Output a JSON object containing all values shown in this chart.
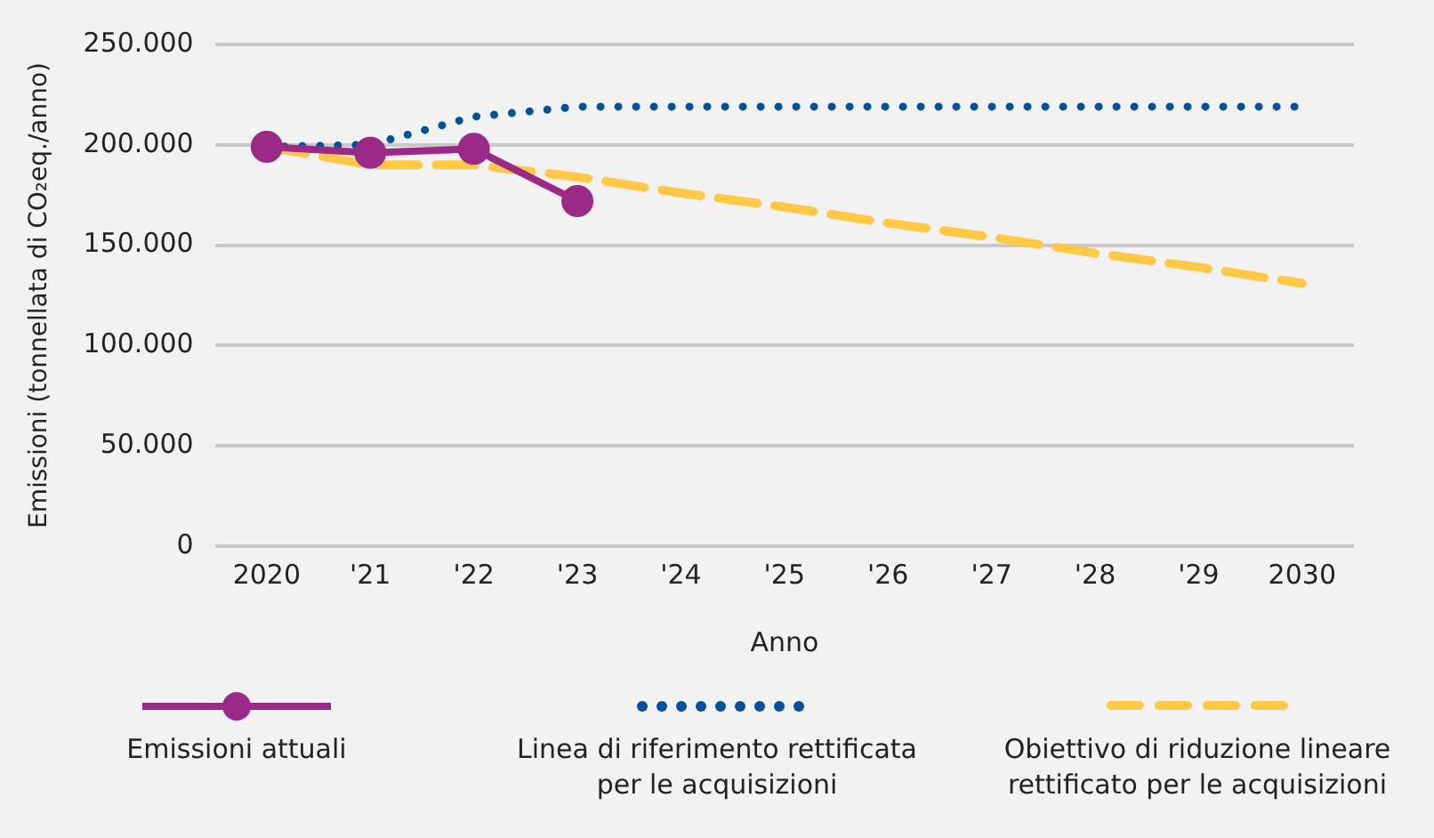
{
  "chart_data": {
    "type": "line",
    "categories": [
      "2020",
      "'21",
      "'22",
      "'23",
      "'24",
      "'25",
      "'26",
      "'27",
      "'28",
      "'29",
      "2030"
    ],
    "xlabel": "Anno",
    "ylabel": "Emissioni (tonnellata di CO₂eq./anno)",
    "ylim": [
      0,
      250000
    ],
    "yticks": [
      {
        "value": 0,
        "label": "0"
      },
      {
        "value": 50000,
        "label": "50.000"
      },
      {
        "value": 100000,
        "label": "100.000"
      },
      {
        "value": 150000,
        "label": "150.000"
      },
      {
        "value": 200000,
        "label": "200.000"
      },
      {
        "value": 250000,
        "label": "250.000"
      }
    ],
    "grid": "y",
    "legend": "bottom",
    "series": [
      {
        "name": "Emissioni attuali",
        "color": "#9b2a86",
        "marker": "circle",
        "line_style": "solid",
        "values": [
          199000,
          196000,
          198000,
          172000,
          null,
          null,
          null,
          null,
          null,
          null,
          null
        ]
      },
      {
        "name": "Linea di riferimento rettificata per le acquisizioni",
        "color": "#00539b",
        "marker": "none",
        "line_style": "dotted",
        "values": [
          199000,
          200000,
          214000,
          219000,
          219000,
          219000,
          219000,
          219000,
          219000,
          219000,
          219000
        ]
      },
      {
        "name": "Obiettivo di riduzione lineare rettificato per le acquisizioni",
        "color": "#ffc845",
        "marker": "none",
        "line_style": "dashed",
        "values": [
          199000,
          190000,
          190000,
          184000,
          176000,
          169000,
          161000,
          154000,
          146000,
          139000,
          131000
        ]
      }
    ]
  }
}
